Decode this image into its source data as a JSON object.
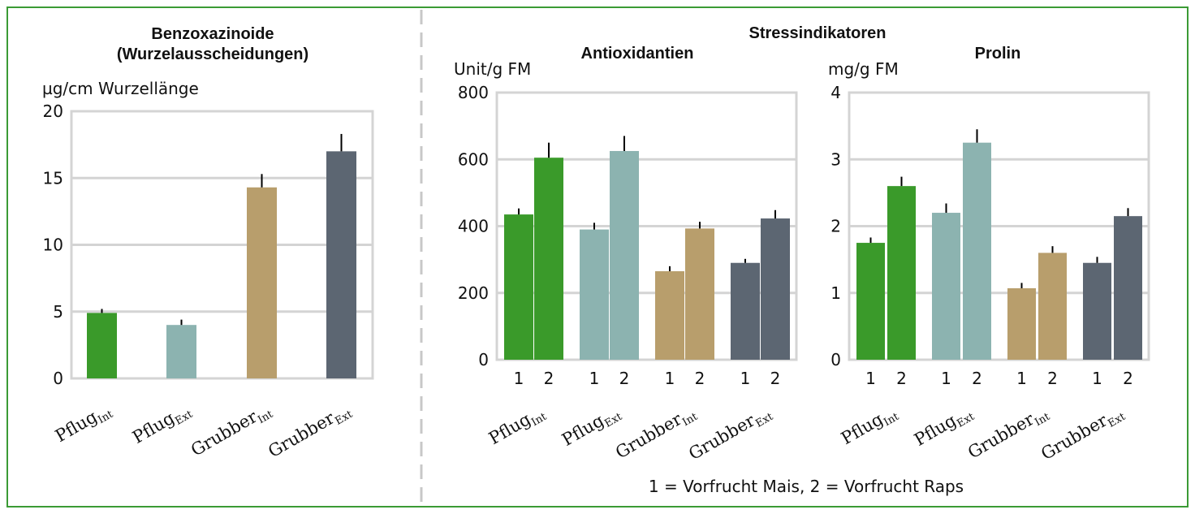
{
  "colors": {
    "frame": "#3b9b35",
    "grid": "#d4d4d4",
    "divider": "#c8c8c8",
    "series": [
      "#3a9a2a",
      "#8cb3b0",
      "#b89e6c",
      "#5c6672"
    ],
    "error_bar": "#000000"
  },
  "footnote": "1 = Vorfrucht Mais, 2 = Vorfrucht Raps",
  "chart_data": [
    {
      "id": "benzoxazinoide",
      "type": "bar",
      "title_lines": [
        "Benzoxazinoide",
        "(Wurzelausscheidungen)"
      ],
      "ylabel": "µg/cm Wurzellänge",
      "ylim": [
        0,
        20
      ],
      "yticks": [
        0,
        5,
        10,
        15,
        20
      ],
      "grid": true,
      "categories": [
        {
          "main": "Pflug",
          "sub": "Int"
        },
        {
          "main": "Pflug",
          "sub": "Ext"
        },
        {
          "main": "Grubber",
          "sub": "Int"
        },
        {
          "main": "Grubber",
          "sub": "Ext"
        }
      ],
      "values": [
        4.9,
        4.0,
        14.3,
        17.0
      ],
      "errors": [
        0.3,
        0.4,
        1.0,
        1.3
      ]
    },
    {
      "id": "antioxidantien",
      "type": "bar",
      "group_title": "Stressindikatoren",
      "title": "Antioxidantien",
      "ylabel": "Unit/g FM",
      "ylim": [
        0,
        800
      ],
      "yticks": [
        0,
        200,
        400,
        600,
        800
      ],
      "grid": true,
      "categories": [
        {
          "main": "Pflug",
          "sub": "Int"
        },
        {
          "main": "Pflug",
          "sub": "Ext"
        },
        {
          "main": "Grubber",
          "sub": "Int"
        },
        {
          "main": "Grubber",
          "sub": "Ext"
        }
      ],
      "subgroups": [
        "1",
        "2"
      ],
      "values": [
        [
          435,
          605
        ],
        [
          390,
          625
        ],
        [
          265,
          393
        ],
        [
          290,
          423
        ]
      ],
      "errors": [
        [
          18,
          45
        ],
        [
          20,
          45
        ],
        [
          15,
          20
        ],
        [
          12,
          25
        ]
      ]
    },
    {
      "id": "prolin",
      "type": "bar",
      "title": "Prolin",
      "ylabel": "mg/g FM",
      "ylim": [
        0,
        4
      ],
      "yticks": [
        0,
        1,
        2,
        3,
        4
      ],
      "grid": true,
      "categories": [
        {
          "main": "Pflug",
          "sub": "Int"
        },
        {
          "main": "Pflug",
          "sub": "Ext"
        },
        {
          "main": "Grubber",
          "sub": "Int"
        },
        {
          "main": "Grubber",
          "sub": "Ext"
        }
      ],
      "subgroups": [
        "1",
        "2"
      ],
      "values": [
        [
          1.75,
          2.6
        ],
        [
          2.2,
          3.25
        ],
        [
          1.07,
          1.6
        ],
        [
          1.45,
          2.15
        ]
      ],
      "errors": [
        [
          0.08,
          0.14
        ],
        [
          0.14,
          0.2
        ],
        [
          0.08,
          0.1
        ],
        [
          0.09,
          0.12
        ]
      ]
    }
  ]
}
